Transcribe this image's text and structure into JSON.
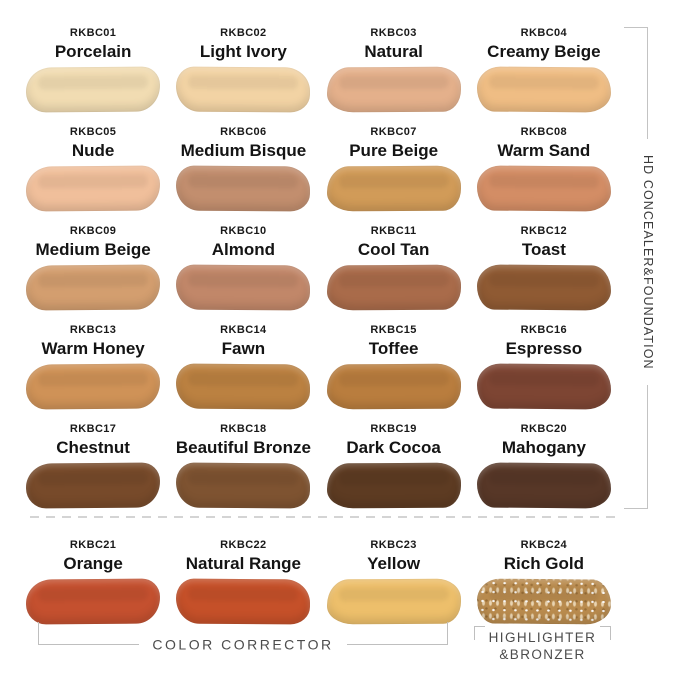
{
  "labels": {
    "vertical_group": "HD CONCEALER&FOUNDATION",
    "color_corrector": "COLOR CORRECTOR",
    "highlighter_line1": "HIGHLIGHTER",
    "highlighter_line2": "&BRONZER"
  },
  "colors": {
    "bracket_line": "#bfbfbf",
    "dashed_divider": "#d4d4d4",
    "text_dark": "#141414",
    "text_gray": "#4c4c4c"
  },
  "shades": [
    {
      "code": "RKBC01",
      "name": "Porcelain",
      "color": "#F1DCB2"
    },
    {
      "code": "RKBC02",
      "name": "Light Ivory",
      "color": "#F2D3A4"
    },
    {
      "code": "RKBC03",
      "name": "Natural",
      "color": "#E4B08B"
    },
    {
      "code": "RKBC04",
      "name": "Creamy Beige",
      "color": "#EFBD84"
    },
    {
      "code": "RKBC05",
      "name": "Nude",
      "color": "#F0BF9B"
    },
    {
      "code": "RKBC06",
      "name": "Medium Bisque",
      "color": "#C28E6E"
    },
    {
      "code": "RKBC07",
      "name": "Pure Beige",
      "color": "#D19B58"
    },
    {
      "code": "RKBC08",
      "name": "Warm Sand",
      "color": "#D38D65"
    },
    {
      "code": "RKBC09",
      "name": "Medium Beige",
      "color": "#D39E6F"
    },
    {
      "code": "RKBC10",
      "name": "Almond",
      "color": "#C18769"
    },
    {
      "code": "RKBC11",
      "name": "Cool Tan",
      "color": "#A96B4A"
    },
    {
      "code": "RKBC12",
      "name": "Toast",
      "color": "#8F5A33"
    },
    {
      "code": "RKBC13",
      "name": "Warm Honey",
      "color": "#CF9257"
    },
    {
      "code": "RKBC14",
      "name": "Fawn",
      "color": "#BB8141"
    },
    {
      "code": "RKBC15",
      "name": "Toffee",
      "color": "#B97D3E"
    },
    {
      "code": "RKBC16",
      "name": "Espresso",
      "color": "#7D4533"
    },
    {
      "code": "RKBC17",
      "name": "Chestnut",
      "color": "#774A2A"
    },
    {
      "code": "RKBC18",
      "name": "Beautiful Bronze",
      "color": "#7E5331"
    },
    {
      "code": "RKBC19",
      "name": "Dark Cocoa",
      "color": "#5D3B22"
    },
    {
      "code": "RKBC20",
      "name": "Mahogany",
      "color": "#573727"
    },
    {
      "code": "RKBC21",
      "name": "Orange",
      "color": "#C4502F"
    },
    {
      "code": "RKBC22",
      "name": "Natural Range",
      "color": "#C55029"
    },
    {
      "code": "RKBC23",
      "name": "Yellow",
      "color": "#EDBF6B"
    },
    {
      "code": "RKBC24",
      "name": "Rich Gold",
      "color": "#B98B4E"
    }
  ]
}
